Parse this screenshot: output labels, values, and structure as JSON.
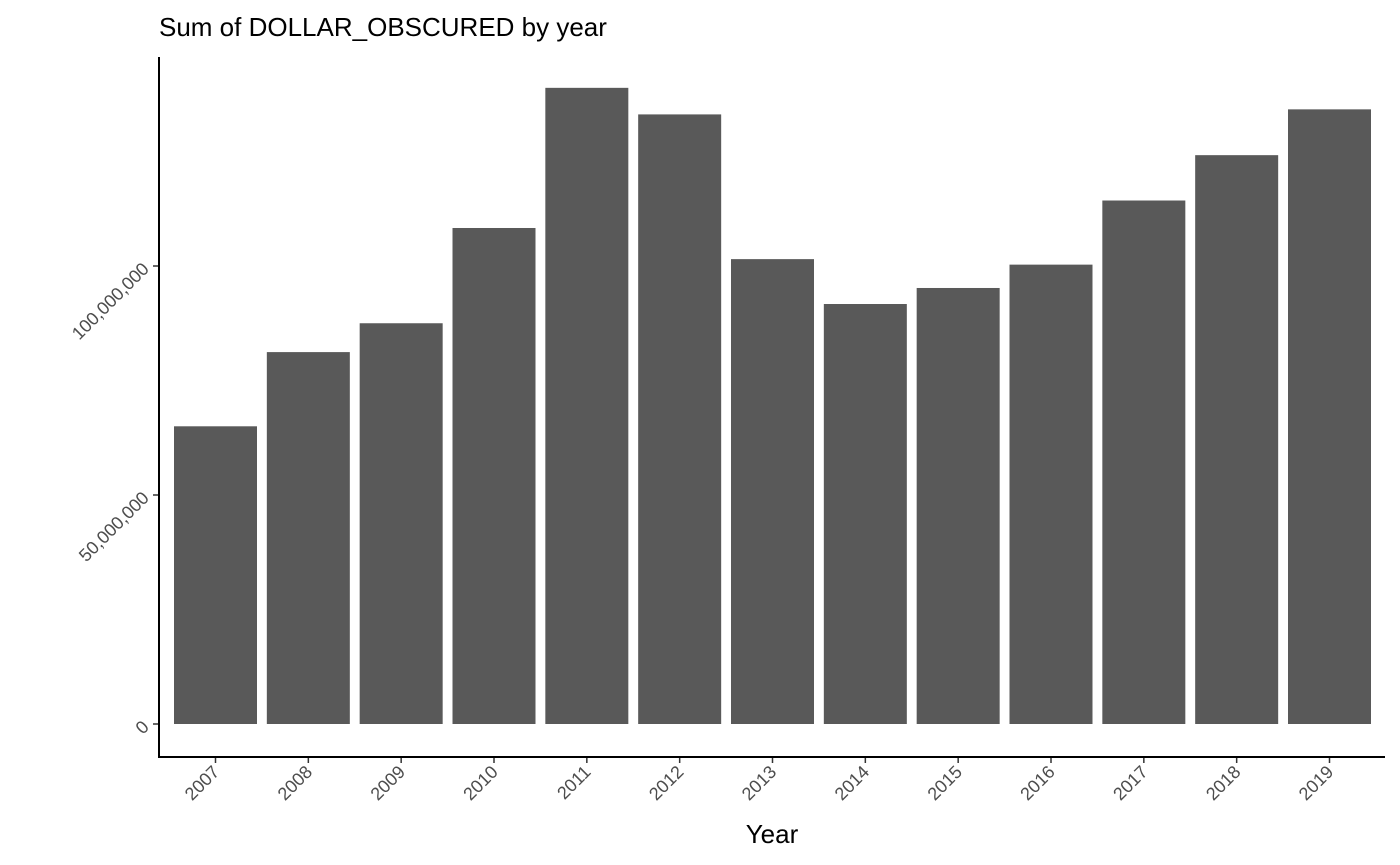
{
  "chart_data": {
    "type": "bar",
    "title": "Sum of DOLLAR_OBSCURED by year",
    "xlabel": "Year",
    "ylabel": "",
    "categories": [
      "2007",
      "2008",
      "2009",
      "2010",
      "2011",
      "2012",
      "2013",
      "2014",
      "2015",
      "2016",
      "2017",
      "2018",
      "2019"
    ],
    "values": [
      65000000,
      81200000,
      87500000,
      108300000,
      138900000,
      133100000,
      101500000,
      91700000,
      95200000,
      100300000,
      114300000,
      124200000,
      134200000
    ],
    "yticks": [
      0,
      50000000,
      100000000
    ],
    "ytick_labels": [
      "0",
      "50,000,000",
      "100,000,000"
    ],
    "ylim": [
      -7000000,
      145000000
    ],
    "bar_color": "#595959",
    "grid": false,
    "legend": "none"
  }
}
